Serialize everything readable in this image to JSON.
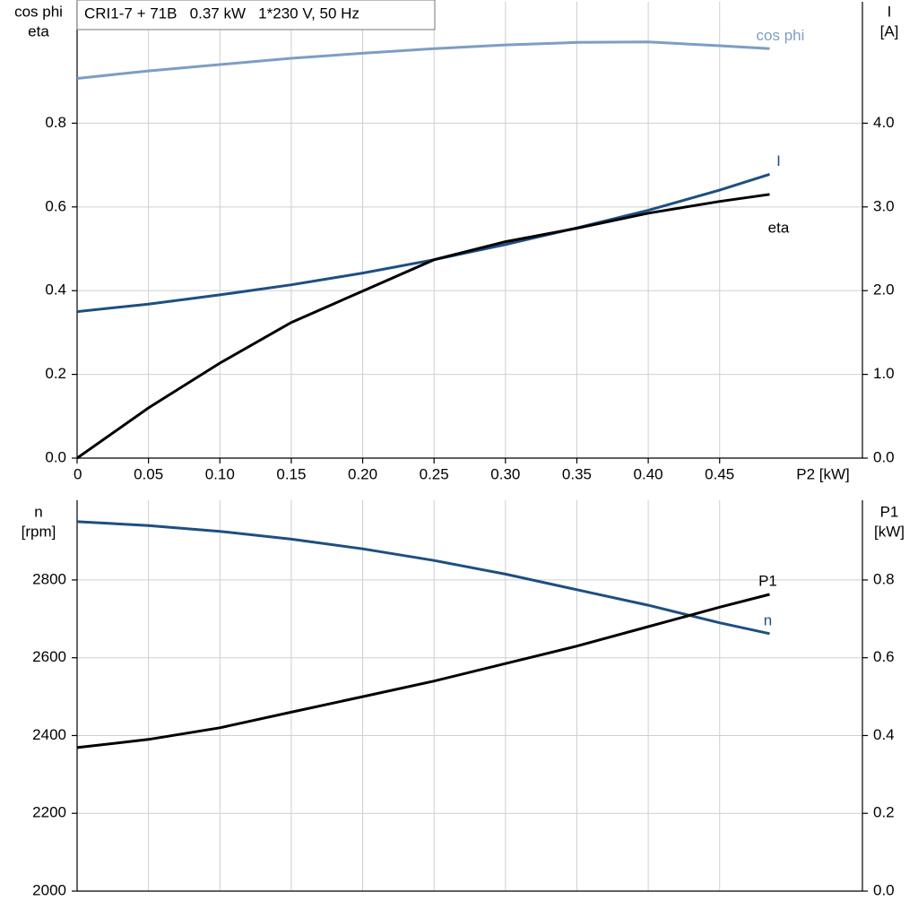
{
  "chart_data": [
    {
      "type": "line",
      "title": "CRI1-7 + 71B   0.37 kW   1*230 V, 50 Hz",
      "x_label": "P2 [kW]",
      "y_label": [
        "cos phi",
        "eta"
      ],
      "y2_label": [
        "I",
        "[A]"
      ],
      "x": [
        0,
        0.05,
        0.1,
        0.15,
        0.2,
        0.25,
        0.3,
        0.35,
        0.4,
        0.45,
        0.485
      ],
      "xlim": [
        0,
        0.55
      ],
      "xticks": [
        0,
        0.05,
        {
          "value": 0.1,
          "label": "0.10"
        },
        0.15,
        {
          "value": 0.2,
          "label": "0.20"
        },
        0.25,
        {
          "value": 0.3,
          "label": "0.30"
        },
        0.35,
        {
          "value": 0.4,
          "label": "0.40"
        },
        0.45
      ],
      "ylim": [
        0,
        1.09
      ],
      "yticks": [
        {
          "value": 0,
          "label": "0.0"
        },
        0.2,
        0.4,
        0.6,
        0.8
      ],
      "y2lim": [
        0,
        5.45
      ],
      "y2ticks": [
        {
          "value": 0,
          "label": "0.0"
        },
        {
          "value": 1,
          "label": "1.0"
        },
        {
          "value": 2,
          "label": "2.0"
        },
        {
          "value": 3,
          "label": "3.0"
        },
        {
          "value": 4,
          "label": "4.0"
        }
      ],
      "grid": true,
      "series": [
        {
          "name": "cos phi",
          "color": "#7c9ec4",
          "values": [
            0.907,
            0.925,
            0.94,
            0.955,
            0.967,
            0.978,
            0.987,
            0.993,
            0.994,
            0.985,
            0.978
          ]
        },
        {
          "name": "I",
          "color": "#1d4f82",
          "axis": "y2",
          "values": [
            1.75,
            1.84,
            1.95,
            2.07,
            2.21,
            2.37,
            2.55,
            2.75,
            2.96,
            3.2,
            3.39
          ]
        },
        {
          "name": "eta",
          "color": "#000000",
          "values": [
            0,
            0.12,
            0.227,
            0.324,
            0.399,
            0.474,
            0.517,
            0.549,
            0.585,
            0.613,
            0.63
          ]
        }
      ]
    },
    {
      "type": "line",
      "y_label": [
        "n",
        "[rpm]"
      ],
      "y2_label": [
        "P1",
        "[kW]"
      ],
      "x": [
        0,
        0.05,
        0.1,
        0.15,
        0.2,
        0.25,
        0.3,
        0.35,
        0.4,
        0.45,
        0.485
      ],
      "xlim": [
        0,
        0.55
      ],
      "xticks": [
        0,
        0.05,
        0.1,
        0.15,
        0.2,
        0.25,
        0.3,
        0.35,
        0.4,
        0.45
      ],
      "ylim": [
        2000,
        3005
      ],
      "yticks": [
        2000,
        2200,
        2400,
        2600,
        2800
      ],
      "y2lim": [
        0,
        1.005
      ],
      "y2ticks": [
        {
          "value": 0,
          "label": "0.0"
        },
        0.2,
        0.4,
        0.6,
        0.8
      ],
      "grid": true,
      "series": [
        {
          "name": "n",
          "color": "#1d4f82",
          "values": [
            2950,
            2940,
            2925,
            2905,
            2880,
            2850,
            2815,
            2775,
            2735,
            2690,
            2662
          ]
        },
        {
          "name": "P1",
          "color": "#000000",
          "axis": "y2",
          "values": [
            0.369,
            0.39,
            0.42,
            0.46,
            0.5,
            0.54,
            0.585,
            0.63,
            0.68,
            0.73,
            0.763
          ]
        }
      ]
    }
  ]
}
